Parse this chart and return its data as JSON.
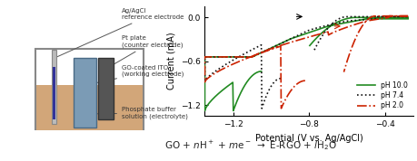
{
  "title": "",
  "xlabel": "Potential (V vs. Ag/AgCl)",
  "ylabel": "Current (mA)",
  "xlim": [
    -1.35,
    -0.25
  ],
  "ylim": [
    -1.35,
    0.15
  ],
  "xticks": [
    -1.2,
    -0.8,
    -0.4
  ],
  "yticks": [
    0.0,
    -0.6,
    -1.2
  ],
  "legend_labels": [
    "pH 10.0",
    "pH 7.4",
    "pH 2.0"
  ],
  "legend_colors": [
    "#228B22",
    "#000000",
    "#CC2200"
  ],
  "legend_styles": [
    "solid",
    "dotted",
    "dashdot"
  ],
  "equation": "GO + $n$H$^+$ + $m$e$^-$ → E-RGO + $l$H$_2$O",
  "bg_color": "#ffffff",
  "diagram_labels": [
    "Ag/AgCl\nreference electrode",
    "Pt plate\n(counter electrode)",
    "GO-coated ITO\n(working electrode)",
    "Phosphate buffer\nsolution (electrolyte)"
  ]
}
